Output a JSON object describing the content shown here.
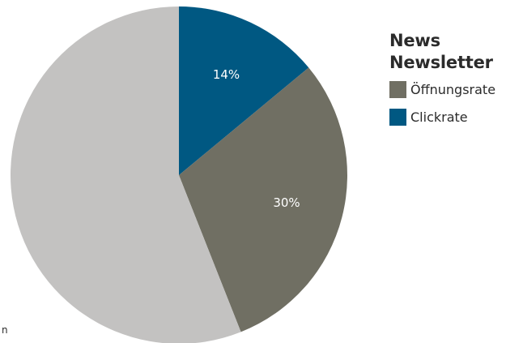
{
  "chart_data": {
    "type": "pie",
    "title_lines": [
      "News",
      "Newsletter"
    ],
    "slices": [
      {
        "name": "Clickrate",
        "value": 14,
        "label": "14%",
        "color": "#005882"
      },
      {
        "name": "Öffnungsrate",
        "value": 30,
        "label": "30%",
        "color": "#706f63"
      },
      {
        "name": "",
        "value": 56,
        "label": "",
        "color": "#c3c2c1"
      }
    ],
    "legend": {
      "placement": "top-right",
      "items": [
        {
          "label": "Öffnungsrate",
          "color": "#706f63"
        },
        {
          "label": "Clickrate",
          "color": "#005882"
        }
      ]
    },
    "cropped_text": "n"
  }
}
